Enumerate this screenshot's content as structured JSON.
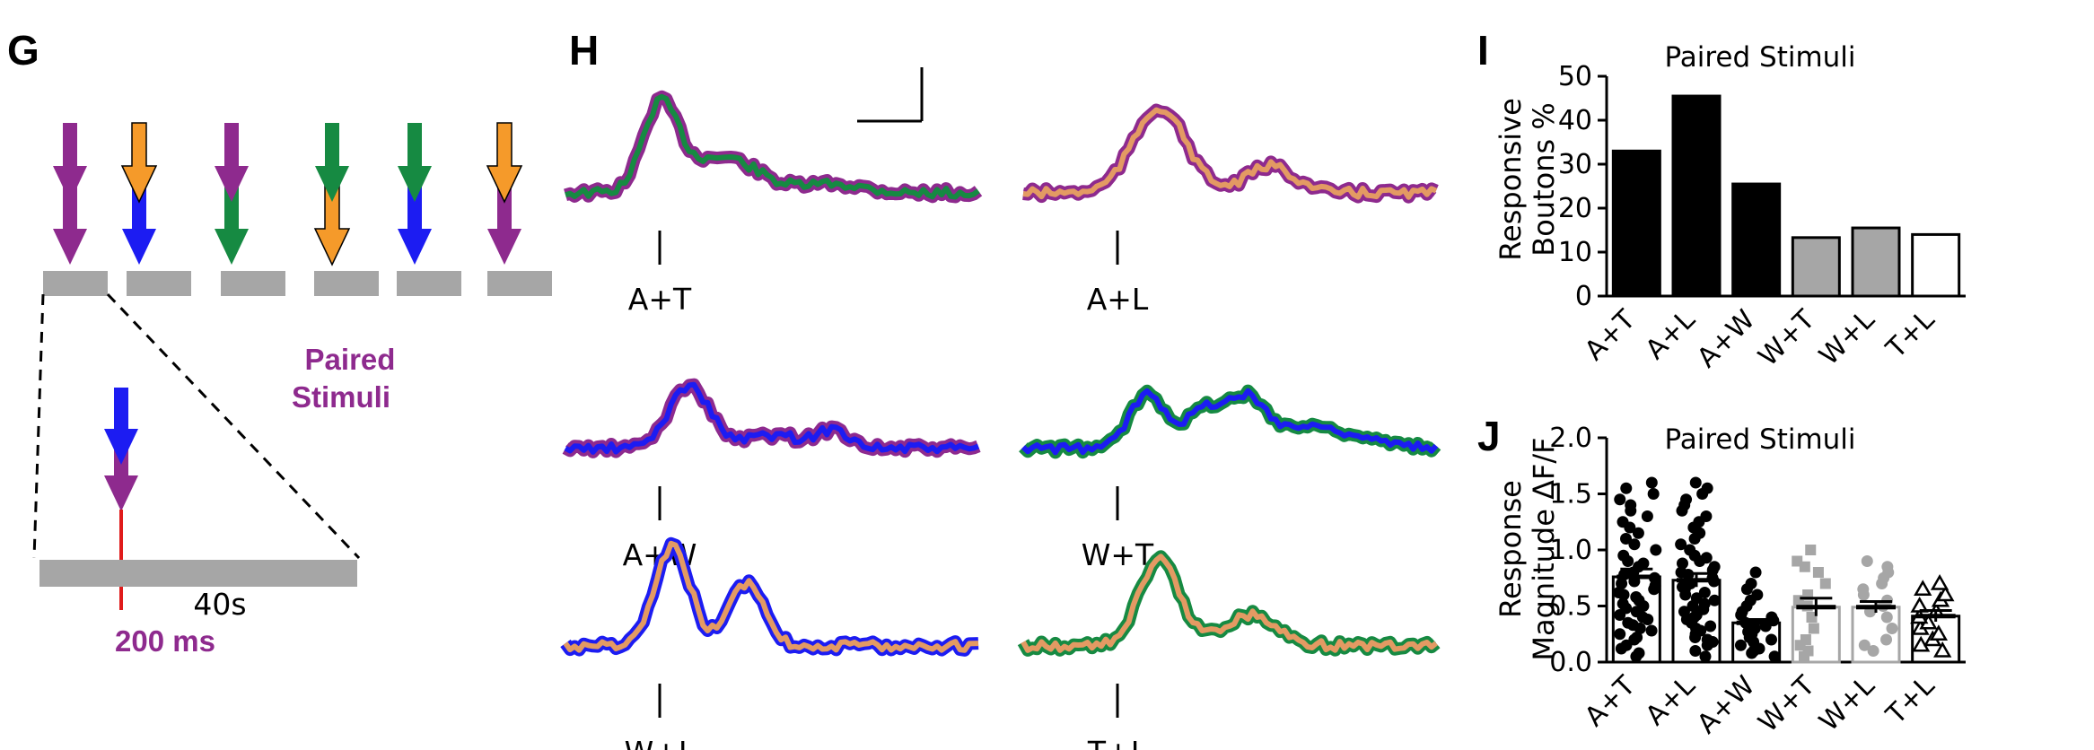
{
  "colors": {
    "auditory": "#1c1cf2",
    "touch": "#f59a2a",
    "light": "#168a42",
    "paired": "#8e2a8e",
    "whisker_trace_fill": "#e39a63",
    "black": "#000000",
    "gray": "#a6a6a6",
    "white": "#ffffff"
  },
  "panel_g": {
    "letter": "G",
    "paired_label_line1": "Paired",
    "paired_label_line2": "Stimuli",
    "duration_label": "40s",
    "pulse_label": "200 ms",
    "stimulus_pairs": [
      {
        "top": "paired",
        "bottom": "paired"
      },
      {
        "top": "touch",
        "bottom": "auditory"
      },
      {
        "top": "paired",
        "bottom": "light"
      },
      {
        "top": "light",
        "bottom": "touch"
      },
      {
        "top": "light",
        "bottom": "auditory"
      },
      {
        "top": "touch",
        "bottom": "paired"
      }
    ],
    "stimulus_pairs_note_icons": [
      "down-arrow-icon"
    ]
  },
  "panel_h": {
    "letter": "H",
    "traces": [
      {
        "label": "A+T",
        "outer": "paired",
        "inner": "light"
      },
      {
        "label": "A+L",
        "outer": "paired",
        "inner": "whisker_trace_fill"
      },
      {
        "label": "A+W",
        "outer": "paired",
        "inner": "auditory"
      },
      {
        "label": "W+T",
        "outer": "light",
        "inner": "auditory"
      },
      {
        "label": "W+L",
        "outer": "auditory",
        "inner": "whisker_trace_fill"
      },
      {
        "label": "T+L",
        "outer": "light",
        "inner": "whisker_trace_fill"
      }
    ]
  },
  "chart_data": [
    {
      "panel": "I",
      "type": "bar",
      "title": "Paired Stimuli",
      "ylabel_line1": "Responsive",
      "ylabel_line2": "Boutons %",
      "categories": [
        "A+T",
        "A+L",
        "A+W",
        "W+T",
        "W+L",
        "T+L"
      ],
      "values": [
        33,
        45.5,
        25.5,
        13.3,
        15.5,
        14
      ],
      "bar_fills": [
        "black",
        "black",
        "black",
        "gray",
        "gray",
        "white"
      ],
      "ylim": [
        0,
        50
      ],
      "yticks": [
        "0",
        "10",
        "20",
        "30",
        "40",
        "50"
      ],
      "grid": false
    },
    {
      "panel": "J",
      "type": "bar",
      "title": "Paired Stimuli",
      "ylabel_line1": "Response",
      "ylabel_line2": "Magnitude ΔF/F",
      "categories": [
        "A+T",
        "A+L",
        "A+W",
        "W+T",
        "W+L",
        "T+L"
      ],
      "values": [
        0.76,
        0.73,
        0.35,
        0.49,
        0.49,
        0.41
      ],
      "sem": [
        0.07,
        0.06,
        0.03,
        0.08,
        0.05,
        0.05
      ],
      "point_markers": [
        "circle",
        "circle",
        "circle",
        "square",
        "circle",
        "triangle"
      ],
      "point_colors": [
        "black",
        "black",
        "black",
        "gray",
        "gray",
        "black"
      ],
      "points": [
        [
          0.05,
          0.08,
          0.12,
          0.15,
          0.2,
          0.22,
          0.25,
          0.28,
          0.3,
          0.33,
          0.35,
          0.38,
          0.4,
          0.42,
          0.45,
          0.48,
          0.5,
          0.52,
          0.55,
          0.58,
          0.6,
          0.62,
          0.65,
          0.68,
          0.7,
          0.72,
          0.75,
          0.78,
          0.8,
          0.85,
          0.88,
          0.9,
          0.95,
          1.0,
          1.05,
          1.1,
          1.15,
          1.2,
          1.25,
          1.3,
          1.35,
          1.4,
          1.45,
          1.5,
          1.55,
          1.6
        ],
        [
          0.05,
          0.1,
          0.15,
          0.18,
          0.2,
          0.22,
          0.25,
          0.28,
          0.3,
          0.32,
          0.35,
          0.38,
          0.4,
          0.42,
          0.45,
          0.47,
          0.5,
          0.52,
          0.55,
          0.57,
          0.6,
          0.62,
          0.65,
          0.67,
          0.7,
          0.72,
          0.75,
          0.78,
          0.8,
          0.82,
          0.85,
          0.88,
          0.9,
          0.93,
          0.95,
          1.0,
          1.05,
          1.1,
          1.15,
          1.2,
          1.25,
          1.3,
          1.35,
          1.4,
          1.45,
          1.5,
          1.55,
          1.6
        ],
        [
          0.05,
          0.08,
          0.1,
          0.12,
          0.15,
          0.18,
          0.2,
          0.22,
          0.25,
          0.27,
          0.3,
          0.32,
          0.35,
          0.37,
          0.4,
          0.42,
          0.45,
          0.5,
          0.55,
          0.6,
          0.65,
          0.7,
          0.8
        ],
        [
          0.05,
          0.1,
          0.15,
          0.2,
          0.3,
          0.4,
          0.5,
          0.55,
          0.6,
          0.7,
          0.8,
          0.85,
          0.9,
          1.0
        ],
        [
          0.1,
          0.15,
          0.2,
          0.3,
          0.4,
          0.45,
          0.5,
          0.55,
          0.6,
          0.65,
          0.7,
          0.75,
          0.8,
          0.85,
          0.9
        ],
        [
          0.1,
          0.15,
          0.2,
          0.25,
          0.3,
          0.35,
          0.4,
          0.45,
          0.5,
          0.55,
          0.6,
          0.65,
          0.7
        ]
      ],
      "ylim": [
        0,
        2.0
      ],
      "yticks": [
        "0.0",
        "0.5",
        "1.0",
        "1.5",
        "2.0"
      ],
      "grid": false
    }
  ]
}
